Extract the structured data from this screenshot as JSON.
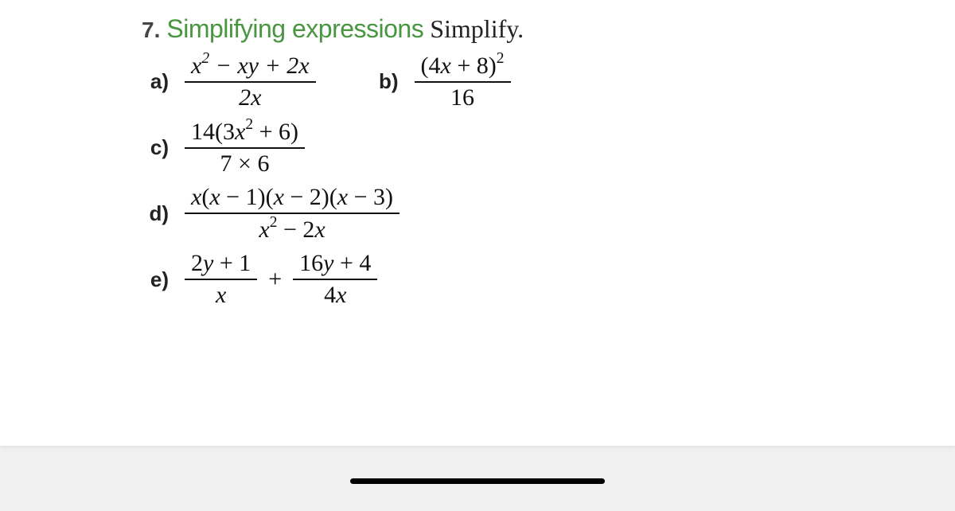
{
  "question_number": "7.",
  "highlight_text": "Simplifying expressions",
  "instruction": "Simplify.",
  "colors": {
    "highlight": "#489640",
    "text": "#111111",
    "label": "#222222",
    "background": "#ffffff",
    "page_bg": "#f0f0f0",
    "scrollbar": "#000000"
  },
  "fonts": {
    "heading_highlight": "Trebuchet MS",
    "labels": "Arial",
    "math": "Georgia serif italic",
    "heading_size_pt": 24,
    "math_size_pt": 22,
    "label_size_pt": 20
  },
  "parts": {
    "a": {
      "label": "a)",
      "numerator": "x² − xy + 2x",
      "denominator": "2x"
    },
    "b": {
      "label": "b)",
      "numerator": "(4x + 8)²",
      "denominator": "16"
    },
    "c": {
      "label": "c)",
      "numerator": "14(3x² + 6)",
      "denominator": "7 × 6"
    },
    "d": {
      "label": "d)",
      "numerator": "x(x − 1)(x − 2)(x − 3)",
      "denominator": "x² − 2x"
    },
    "e": {
      "label": "e)",
      "term1": {
        "numerator": "2y + 1",
        "denominator": "x"
      },
      "op": "+",
      "term2": {
        "numerator": "16y + 4",
        "denominator": "4x"
      }
    }
  }
}
